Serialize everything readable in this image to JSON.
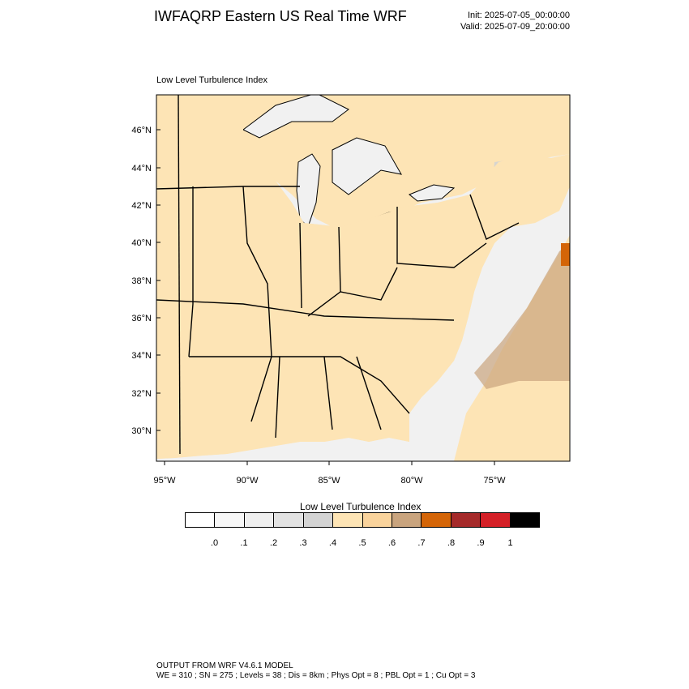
{
  "header": {
    "title": "IWFAQRP Eastern US Real Time WRF",
    "init": "Init: 2025-07-05_00:00:00",
    "valid": "Valid: 2025-07-09_20:00:00"
  },
  "map": {
    "field_label": "Low Level Turbulence Index",
    "lat_labels": [
      "46°N",
      "44°N",
      "42°N",
      "40°N",
      "38°N",
      "36°N",
      "34°N",
      "32°N",
      "30°N"
    ],
    "lon_labels": [
      "95°W",
      "90°W",
      "85°W",
      "80°W",
      "75°W"
    ],
    "colors": {
      "land_base": "#fde4b5",
      "land_mid": "#f9d39c",
      "high": "#c9a47e",
      "peak": "#d46508",
      "water_light": "#f1f1f1",
      "water_mid": "#e3e3e3",
      "grey": "#d4d4d4",
      "border": "#000000"
    }
  },
  "colorbar": {
    "title": "Low Level Turbulence Index",
    "colors": [
      "#ffffff",
      "#f7f7f7",
      "#efefef",
      "#e2e2e2",
      "#d3d3d3",
      "#fde4b5",
      "#f9d39c",
      "#c9a47e",
      "#d46508",
      "#a52a2a",
      "#d42027",
      "#000000"
    ],
    "tick_labels": [
      ".0",
      ".1",
      ".2",
      ".3",
      ".4",
      ".5",
      ".6",
      ".7",
      ".8",
      ".9",
      "1"
    ]
  },
  "footer": {
    "line1": "OUTPUT FROM WRF V4.6.1 MODEL",
    "line2": "WE = 310 ; SN = 275 ; Levels = 38 ; Dis = 8km ; Phys Opt = 8 ; PBL Opt = 1 ; Cu Opt = 3"
  }
}
